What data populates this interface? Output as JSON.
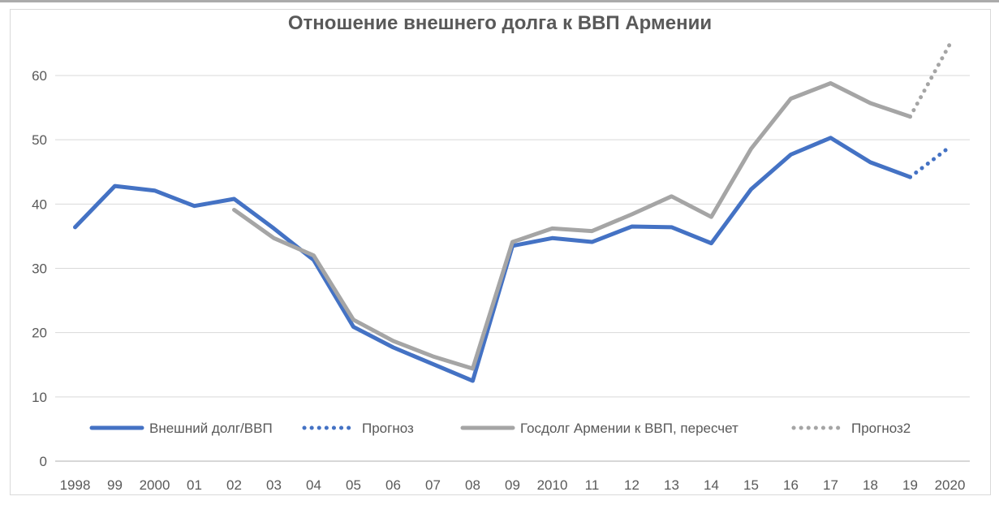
{
  "chart_data": {
    "type": "line",
    "title": "Отношение внешнего долга к ВВП Армении",
    "xlabel": "",
    "ylabel": "",
    "categories": [
      "1998",
      "99",
      "2000",
      "01",
      "02",
      "03",
      "04",
      "05",
      "06",
      "07",
      "08",
      "09",
      "2010",
      "11",
      "12",
      "13",
      "14",
      "15",
      "16",
      "17",
      "18",
      "19",
      "2020"
    ],
    "yticks": [
      0,
      10,
      20,
      30,
      40,
      50,
      60
    ],
    "ylim": [
      0,
      66
    ],
    "grid": "horizontal",
    "legend_position": "bottom-inside",
    "series": [
      {
        "name": "Внешний долг/ВВП",
        "color": "#4472C4",
        "style": "solid",
        "values": [
          36.4,
          42.8,
          42.1,
          39.7,
          40.8,
          36.2,
          31.3,
          20.9,
          17.7,
          15.1,
          12.5,
          33.5,
          34.7,
          34.1,
          36.5,
          36.4,
          33.9,
          42.3,
          47.7,
          50.3,
          46.5,
          44.2,
          null
        ]
      },
      {
        "name": "Прогноз",
        "color": "#4472C4",
        "style": "dotted",
        "values": [
          null,
          null,
          null,
          null,
          null,
          null,
          null,
          null,
          null,
          null,
          null,
          null,
          null,
          null,
          null,
          null,
          null,
          null,
          null,
          null,
          null,
          44.2,
          48.9
        ]
      },
      {
        "name": "Госдолг Армении к ВВП, пересчет",
        "color": "#A5A5A5",
        "style": "solid",
        "values": [
          null,
          null,
          null,
          null,
          39.1,
          34.7,
          32.0,
          22.0,
          18.7,
          16.3,
          14.4,
          34.1,
          36.2,
          35.8,
          38.4,
          41.2,
          38.0,
          48.6,
          56.4,
          58.8,
          55.7,
          53.6,
          null
        ]
      },
      {
        "name": "Прогноз2",
        "color": "#A5A5A5",
        "style": "dotted",
        "values": [
          null,
          null,
          null,
          null,
          null,
          null,
          null,
          null,
          null,
          null,
          null,
          null,
          null,
          null,
          null,
          null,
          null,
          null,
          null,
          null,
          null,
          53.6,
          64.9
        ]
      }
    ]
  },
  "colors": {
    "accent_blue": "#4472C4",
    "accent_gray": "#A5A5A5",
    "gridline": "#D9D9D9",
    "axis_line": "#BFBFBF",
    "text": "#595959",
    "frame_border": "#D9D9D9",
    "top_rule": "#ABABAB",
    "background": "#FFFFFF"
  }
}
